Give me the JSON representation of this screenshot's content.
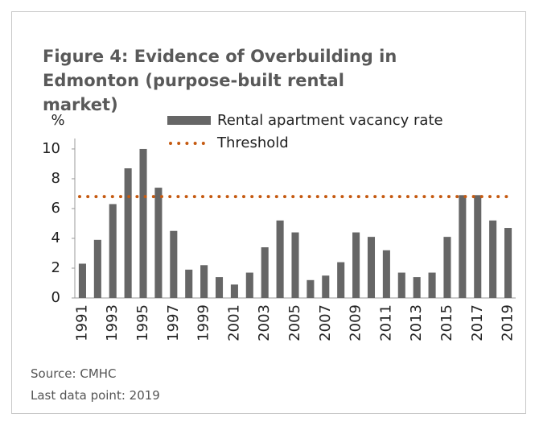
{
  "chart_data": {
    "type": "bar",
    "title": "Figure 4: Evidence of Overbuilding in Edmonton (purpose-built rental market)",
    "ylabel": "%",
    "categories": [
      "1991",
      null,
      "1993",
      null,
      "1995",
      null,
      "1997",
      null,
      "1999",
      null,
      "2001",
      null,
      "2003",
      null,
      "2005",
      null,
      "2007",
      null,
      "2009",
      null,
      "2011",
      null,
      "2013",
      null,
      "2015",
      null,
      "2017",
      null,
      "2019"
    ],
    "series": [
      {
        "name": "Rental apartment vacancy rate",
        "color": "#666666",
        "values": [
          2.3,
          3.9,
          6.3,
          8.7,
          10.0,
          7.4,
          4.5,
          1.9,
          2.2,
          1.4,
          0.9,
          1.7,
          3.4,
          5.2,
          4.4,
          1.2,
          1.5,
          2.4,
          4.4,
          4.1,
          3.2,
          1.7,
          1.4,
          1.7,
          4.1,
          6.9,
          6.9,
          5.2,
          4.7
        ]
      }
    ],
    "reference_lines": [
      {
        "name": "Threshold",
        "value": 6.8,
        "color": "#c55a11"
      }
    ],
    "ylim": [
      0,
      10.7
    ],
    "yticks": [
      0,
      2,
      4,
      6,
      8,
      10
    ],
    "notes": [
      "Source: CMHC",
      "Last data point: 2019"
    ]
  }
}
